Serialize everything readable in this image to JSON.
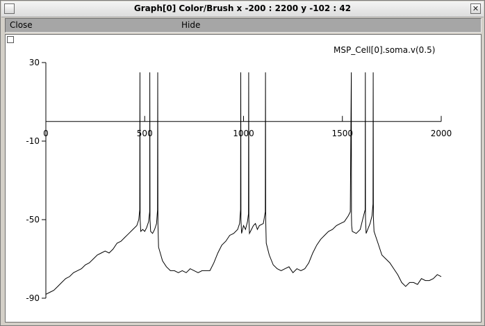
{
  "window": {
    "title": "Graph[0] Color/Brush x -200 : 2200  y -102 : 42",
    "left_button_glyph": "",
    "close_glyph": "✕"
  },
  "menu": {
    "close_label": "Close",
    "hide_label": "Hide"
  },
  "chart_data": {
    "type": "line",
    "legend": "MSP_Cell[0].soma.v(0.5)",
    "xlim": [
      0,
      2000
    ],
    "ylim": [
      -90,
      30
    ],
    "x_ticks": [
      0,
      500,
      1000,
      1500,
      2000
    ],
    "x_tick_labels": [
      "0",
      "500",
      "1000",
      "1500",
      "2000"
    ],
    "y_ticks": [
      30,
      -10,
      -50,
      -90
    ],
    "y_tick_labels": [
      "30",
      "-10",
      "-50",
      "-90"
    ],
    "x_axis_at_y": 0,
    "series": [
      {
        "x": [
          0,
          20,
          40,
          60,
          80,
          100,
          120,
          140,
          160,
          180,
          200,
          220,
          240,
          260,
          280,
          300,
          320,
          340,
          360,
          380,
          400,
          420,
          440,
          460,
          470,
          475,
          476,
          477,
          480,
          490,
          500,
          510,
          520,
          525,
          526,
          527,
          530,
          540,
          550,
          560,
          565,
          566,
          567,
          570,
          590,
          610,
          630,
          650,
          670,
          690,
          710,
          730,
          750,
          770,
          790,
          810,
          830,
          850,
          870,
          890,
          910,
          930,
          950,
          970,
          980,
          985,
          986,
          987,
          990,
          1000,
          1010,
          1020,
          1025,
          1026,
          1027,
          1030,
          1040,
          1050,
          1060,
          1070,
          1080,
          1100,
          1110,
          1111,
          1112,
          1115,
          1130,
          1150,
          1170,
          1190,
          1210,
          1230,
          1250,
          1270,
          1290,
          1310,
          1330,
          1350,
          1370,
          1390,
          1410,
          1430,
          1450,
          1470,
          1490,
          1510,
          1530,
          1540,
          1545,
          1546,
          1547,
          1550,
          1570,
          1590,
          1600,
          1610,
          1615,
          1616,
          1617,
          1620,
          1640,
          1650,
          1655,
          1656,
          1657,
          1660,
          1680,
          1700,
          1720,
          1740,
          1760,
          1780,
          1800,
          1820,
          1840,
          1860,
          1880,
          1900,
          1920,
          1940,
          1960,
          1980,
          2000
        ],
        "y": [
          -88,
          -87,
          -86,
          -84,
          -82,
          -80,
          -79,
          -77,
          -76,
          -75,
          -73,
          -72,
          -70,
          -68,
          -67,
          -66,
          -67,
          -65,
          -62,
          -61,
          -59,
          -57,
          -55,
          -53,
          -50,
          -45,
          25,
          -50,
          -56,
          -55,
          -56,
          -54,
          -51,
          -46,
          25,
          -50,
          -56,
          -57,
          -55,
          -52,
          -45,
          25,
          -52,
          -64,
          -71,
          -74,
          -76,
          -76,
          -77,
          -76,
          -77,
          -75,
          -76,
          -77,
          -76,
          -76,
          -76,
          -72,
          -67,
          -63,
          -61,
          -58,
          -57,
          -55,
          -52,
          -45,
          25,
          -50,
          -57,
          -53,
          -55,
          -51,
          -47,
          25,
          -50,
          -57,
          -55,
          -53,
          -52,
          -55,
          -53,
          -52,
          -46,
          25,
          -50,
          -62,
          -68,
          -73,
          -75,
          -76,
          -75,
          -74,
          -77,
          -75,
          -76,
          -75,
          -72,
          -67,
          -63,
          -60,
          -58,
          -56,
          -55,
          -53,
          -52,
          -51,
          -48,
          -46,
          25,
          -48,
          -53,
          -56,
          -57,
          -55,
          -51,
          -47,
          -45,
          25,
          -49,
          -57,
          -52,
          -48,
          -42,
          25,
          -49,
          -56,
          -62,
          -68,
          -70,
          -72,
          -75,
          -78,
          -82,
          -84,
          -82,
          -82,
          -83,
          -80,
          -81,
          -81,
          -80,
          -78,
          -79
        ]
      }
    ]
  }
}
